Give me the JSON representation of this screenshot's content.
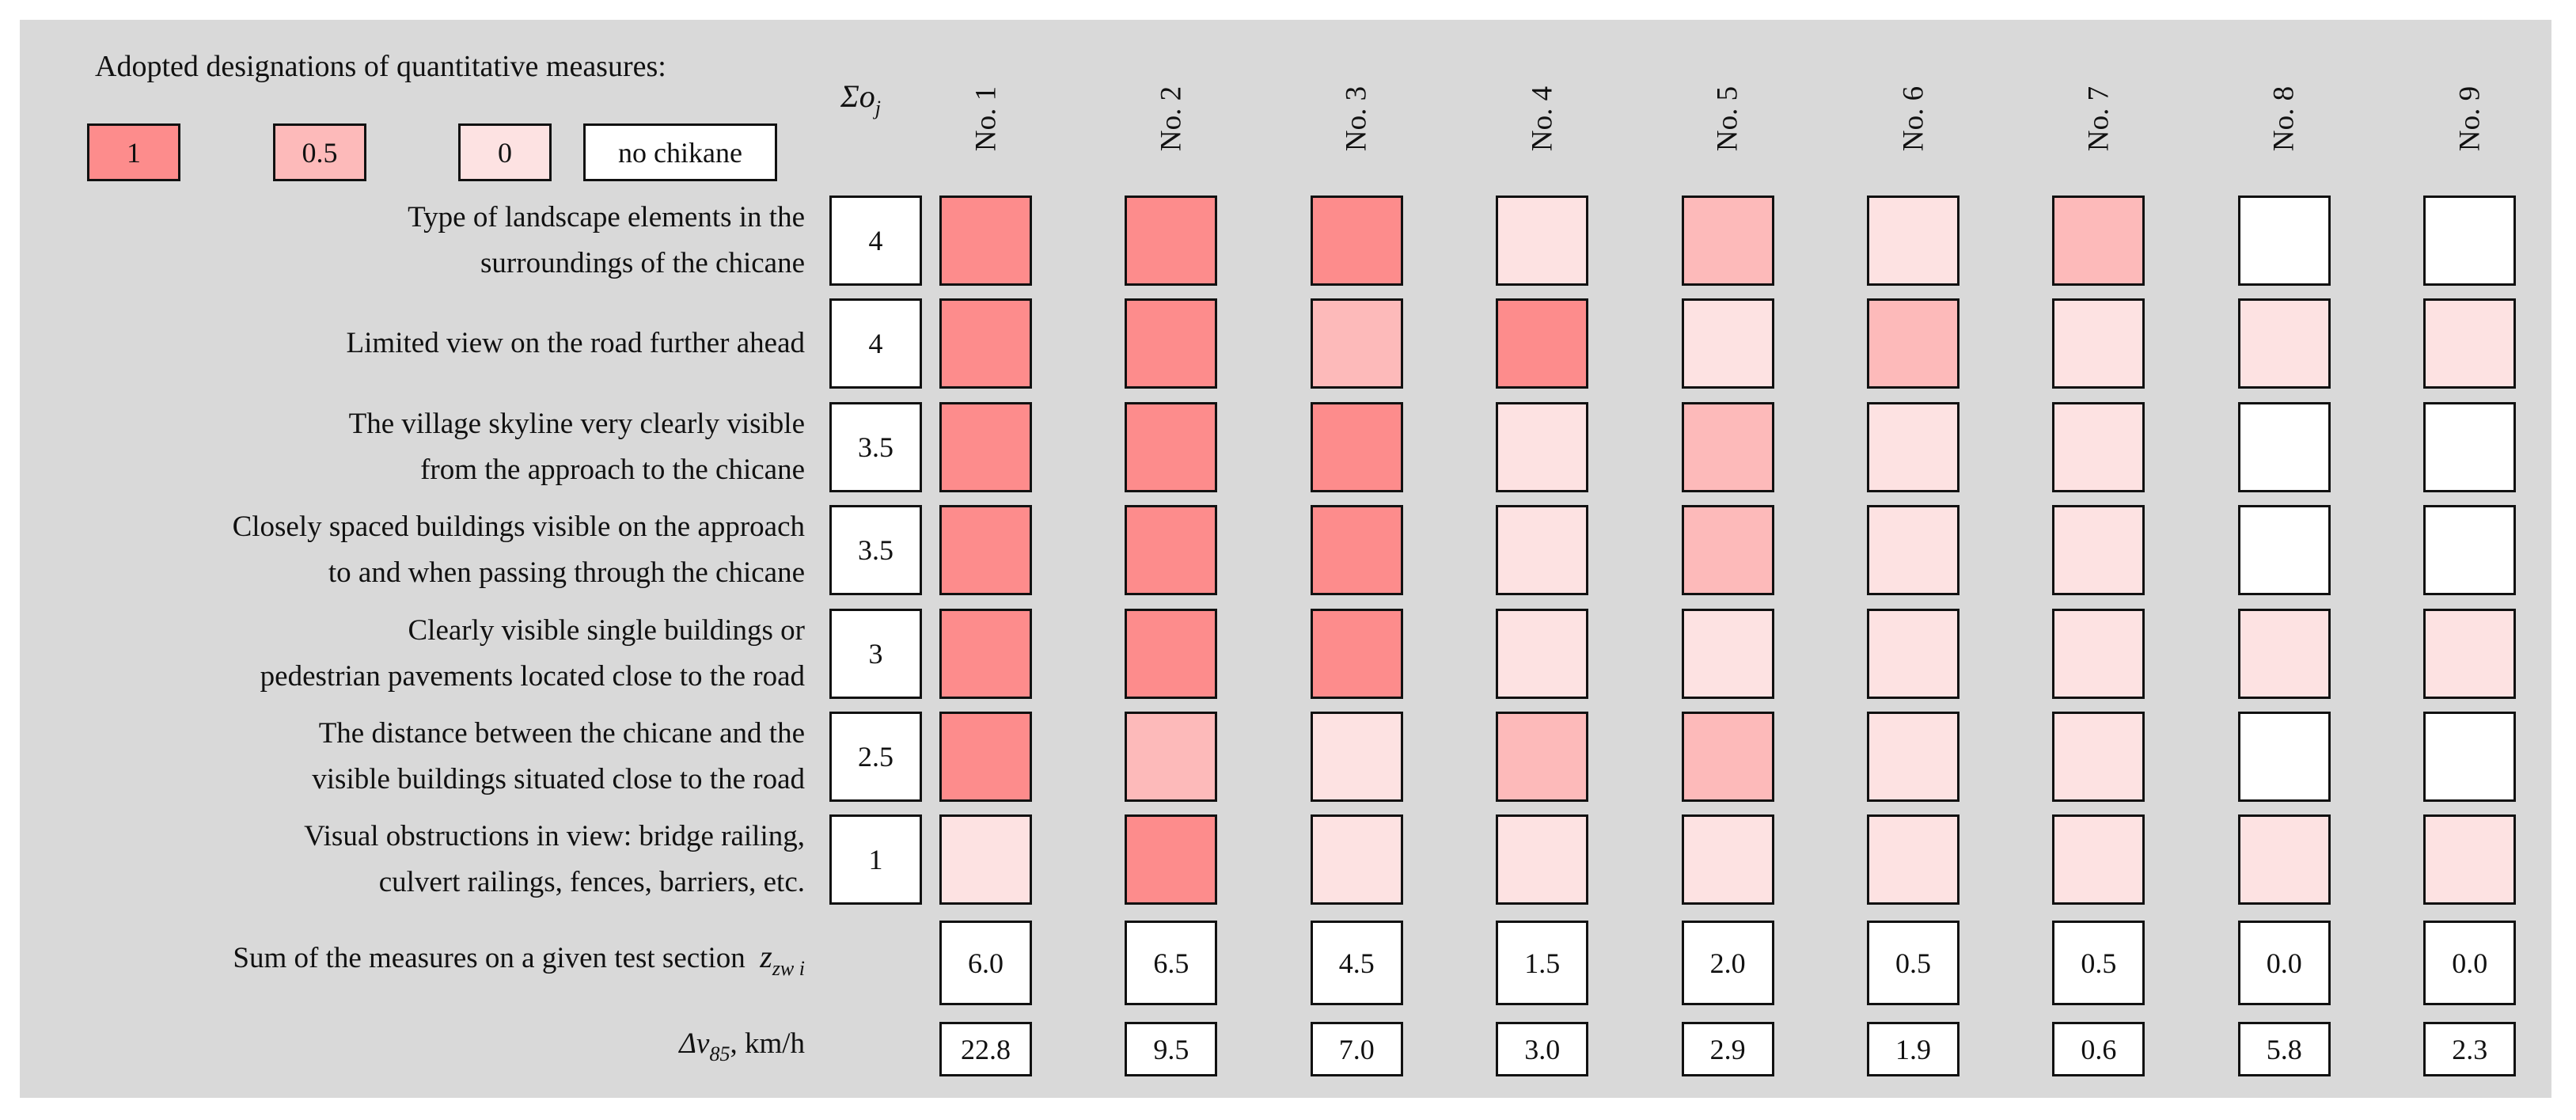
{
  "legend": {
    "title": "Adopted designations of quantitative measures:",
    "items": [
      {
        "label": "1",
        "level": 1
      },
      {
        "label": "0.5",
        "level": 0.5
      },
      {
        "label": "0",
        "level": 0
      },
      {
        "label": "no chikane",
        "level": null
      }
    ]
  },
  "colors": {
    "level_1": "#fd8c8c",
    "level_0_5": "#fdbaba",
    "level_0": "#fde2e2",
    "no_chikane": "#ffffff",
    "background": "#d9d9d9"
  },
  "sigma_header": {
    "symbol": "Σo",
    "subscript": "j"
  },
  "columns": [
    "No. 1",
    "No. 2",
    "No. 3",
    "No. 4",
    "No. 5",
    "No. 6",
    "No. 7",
    "No. 8",
    "No. 9"
  ],
  "rows": [
    {
      "lines": [
        "Type of landscape elements in the",
        "surroundings of the chicane"
      ],
      "sum": "4",
      "values": [
        1,
        1,
        1,
        0,
        0.5,
        0,
        0.5,
        null,
        null
      ]
    },
    {
      "lines": [
        "Limited view on the road further ahead"
      ],
      "sum": "4",
      "values": [
        1,
        1,
        0.5,
        1,
        0,
        0.5,
        0,
        0,
        0
      ]
    },
    {
      "lines": [
        "The village skyline very clearly visible",
        "from the approach to the chicane"
      ],
      "sum": "3.5",
      "values": [
        1,
        1,
        1,
        0,
        0.5,
        0,
        0,
        null,
        null
      ]
    },
    {
      "lines": [
        "Closely spaced buildings visible on the approach",
        "to and when passing through the chicane"
      ],
      "sum": "3.5",
      "values": [
        1,
        1,
        1,
        0,
        0.5,
        0,
        0,
        null,
        null
      ]
    },
    {
      "lines": [
        "Clearly visible single buildings or",
        "pedestrian pavements located close to the road"
      ],
      "sum": "3",
      "values": [
        1,
        1,
        1,
        0,
        0,
        0,
        0,
        0,
        0
      ]
    },
    {
      "lines": [
        "The distance between the chicane and the",
        "visible buildings situated close to the road"
      ],
      "sum": "2.5",
      "values": [
        1,
        0.5,
        0,
        0.5,
        0.5,
        0,
        0,
        null,
        null
      ]
    },
    {
      "lines": [
        "Visual obstructions in view: bridge railing,",
        "culvert railings, fences, barriers, etc."
      ],
      "sum": "1",
      "values": [
        0,
        1,
        0,
        0,
        0,
        0,
        0,
        0,
        0
      ]
    }
  ],
  "sum_row": {
    "label": "Sum of the measures on a given test section",
    "symbol": "z",
    "subscript": "zw i",
    "values": [
      "6.0",
      "6.5",
      "4.5",
      "1.5",
      "2.0",
      "0.5",
      "0.5",
      "0.0",
      "0.0"
    ]
  },
  "dv_row": {
    "symbol": "Δv",
    "subscript": "85",
    "unit": ", km/h",
    "values": [
      "22.8",
      "9.5",
      "7.0",
      "3.0",
      "2.9",
      "1.9",
      "0.6",
      "5.8",
      "2.3"
    ]
  }
}
